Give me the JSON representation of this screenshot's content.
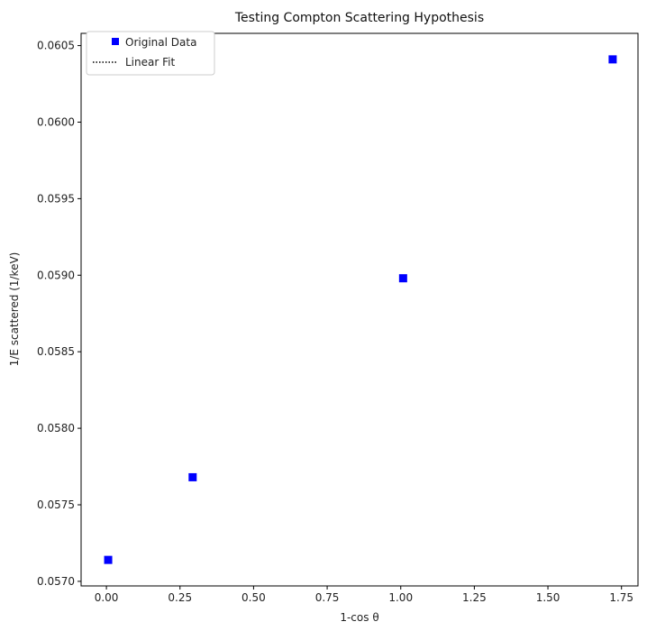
{
  "chart_data": {
    "type": "scatter",
    "title": "Testing Compton Scattering Hypothesis",
    "xlabel": "1-cos θ",
    "ylabel": "1/E scattered (1/keV)",
    "xlim": [
      -0.086,
      1.806
    ],
    "ylim": [
      0.05697,
      0.06058
    ],
    "x_ticks": [
      0.0,
      0.25,
      0.5,
      0.75,
      1.0,
      1.25,
      1.5,
      1.75
    ],
    "x_tick_labels": [
      "0.00",
      "0.25",
      "0.50",
      "0.75",
      "1.00",
      "1.25",
      "1.50",
      "1.75"
    ],
    "y_ticks": [
      0.057,
      0.0575,
      0.058,
      0.0585,
      0.059,
      0.0595,
      0.06,
      0.0605
    ],
    "y_tick_labels": [
      "0.0570",
      "0.0575",
      "0.0580",
      "0.0585",
      "0.0590",
      "0.0595",
      "0.0600",
      "0.0605"
    ],
    "grid": false,
    "legend_position": "top-left",
    "series": [
      {
        "name": "Original Data",
        "style": "square-marker",
        "color": "#0000ff",
        "x": [
          0.006,
          0.293,
          1.008,
          1.72
        ],
        "y": [
          0.05714,
          0.05768,
          0.05898,
          0.06041
        ]
      },
      {
        "name": "Linear Fit",
        "style": "dotted-line",
        "color": "#000000",
        "x": [],
        "y": []
      }
    ]
  }
}
